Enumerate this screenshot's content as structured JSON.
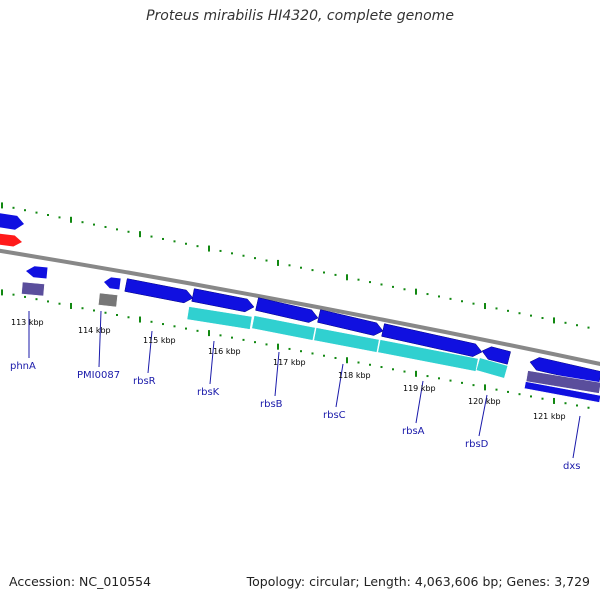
{
  "title": "Proteus mirabilis HI4320, complete genome",
  "accession_text": "Accession: NC_010554",
  "summary_text": "Topology: circular; Length: 4,063,606 bp; Genes: 3,729",
  "colors": {
    "backbone": "#888888",
    "forward_gene": "#1010e0",
    "reverse_gene": "#1010e0",
    "rna_gene": "#ff1a1a",
    "pseudo_gene": "#777777",
    "cds_feature": "#30d0d0",
    "misc_feature": "#5a4e9c",
    "tick_major": "#118811",
    "tick_minor": "#118811",
    "gene_label": "#1a1aaa"
  },
  "scale_labels": [
    "113 kbp",
    "114 kbp",
    "115 kbp",
    "116 kbp",
    "117 kbp",
    "118 kbp",
    "119 kbp",
    "120 kbp",
    "121 kbp"
  ],
  "gene_labels": [
    "phnA",
    "PMI0087",
    "rbsR",
    "rbsK",
    "rbsB",
    "rbsC",
    "rbsA",
    "rbsD",
    "dxs"
  ]
}
